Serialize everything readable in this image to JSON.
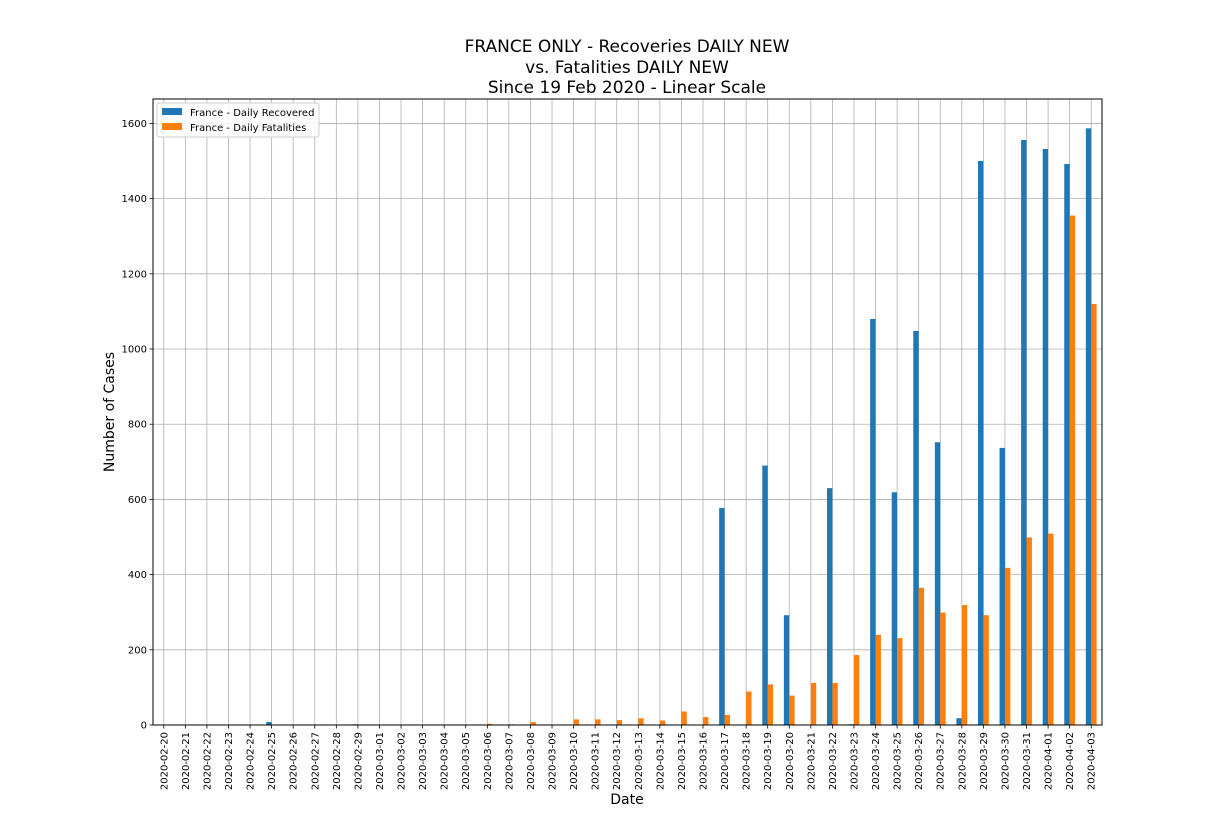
{
  "chart_data": {
    "type": "bar",
    "title_lines": [
      "FRANCE ONLY - Recoveries DAILY NEW",
      "vs. Fatalities DAILY NEW",
      "Since 19 Feb 2020 - Linear Scale"
    ],
    "xlabel": "Date",
    "ylabel": "Number of Cases",
    "ylim": [
      0,
      1665
    ],
    "yticks": [
      0,
      200,
      400,
      600,
      800,
      1000,
      1200,
      1400,
      1600
    ],
    "grid": true,
    "legend_position": "top-left",
    "categories": [
      "2020-02-20",
      "2020-02-21",
      "2020-02-22",
      "2020-02-23",
      "2020-02-24",
      "2020-02-25",
      "2020-02-26",
      "2020-02-27",
      "2020-02-28",
      "2020-02-29",
      "2020-03-01",
      "2020-03-02",
      "2020-03-03",
      "2020-03-04",
      "2020-03-05",
      "2020-03-06",
      "2020-03-07",
      "2020-03-08",
      "2020-03-09",
      "2020-03-10",
      "2020-03-11",
      "2020-03-12",
      "2020-03-13",
      "2020-03-14",
      "2020-03-15",
      "2020-03-16",
      "2020-03-17",
      "2020-03-18",
      "2020-03-19",
      "2020-03-20",
      "2020-03-21",
      "2020-03-22",
      "2020-03-23",
      "2020-03-24",
      "2020-03-25",
      "2020-03-26",
      "2020-03-27",
      "2020-03-28",
      "2020-03-29",
      "2020-03-30",
      "2020-03-31",
      "2020-04-01",
      "2020-04-02",
      "2020-04-03"
    ],
    "series": [
      {
        "name": "France - Daily Recovered",
        "color": "#1f77b4",
        "values": [
          0,
          0,
          0,
          0,
          0,
          8,
          0,
          0,
          0,
          2,
          0,
          0,
          0,
          0,
          0,
          0,
          0,
          0,
          0,
          0,
          0,
          0,
          0,
          0,
          0,
          0,
          577,
          0,
          690,
          292,
          0,
          630,
          2,
          1080,
          619,
          1048,
          752,
          18,
          1500,
          737,
          1556,
          1532,
          1492,
          1587
        ]
      },
      {
        "name": "France - Daily Fatalities",
        "color": "#ff7f0e",
        "values": [
          0,
          0,
          0,
          0,
          0,
          0,
          1,
          0,
          0,
          0,
          0,
          1,
          1,
          0,
          1,
          3,
          2,
          8,
          0,
          15,
          15,
          13,
          18,
          12,
          36,
          21,
          27,
          89,
          108,
          78,
          112,
          112,
          186,
          240,
          231,
          365,
          299,
          319,
          292,
          418,
          499,
          509,
          1355,
          1120
        ]
      }
    ]
  }
}
